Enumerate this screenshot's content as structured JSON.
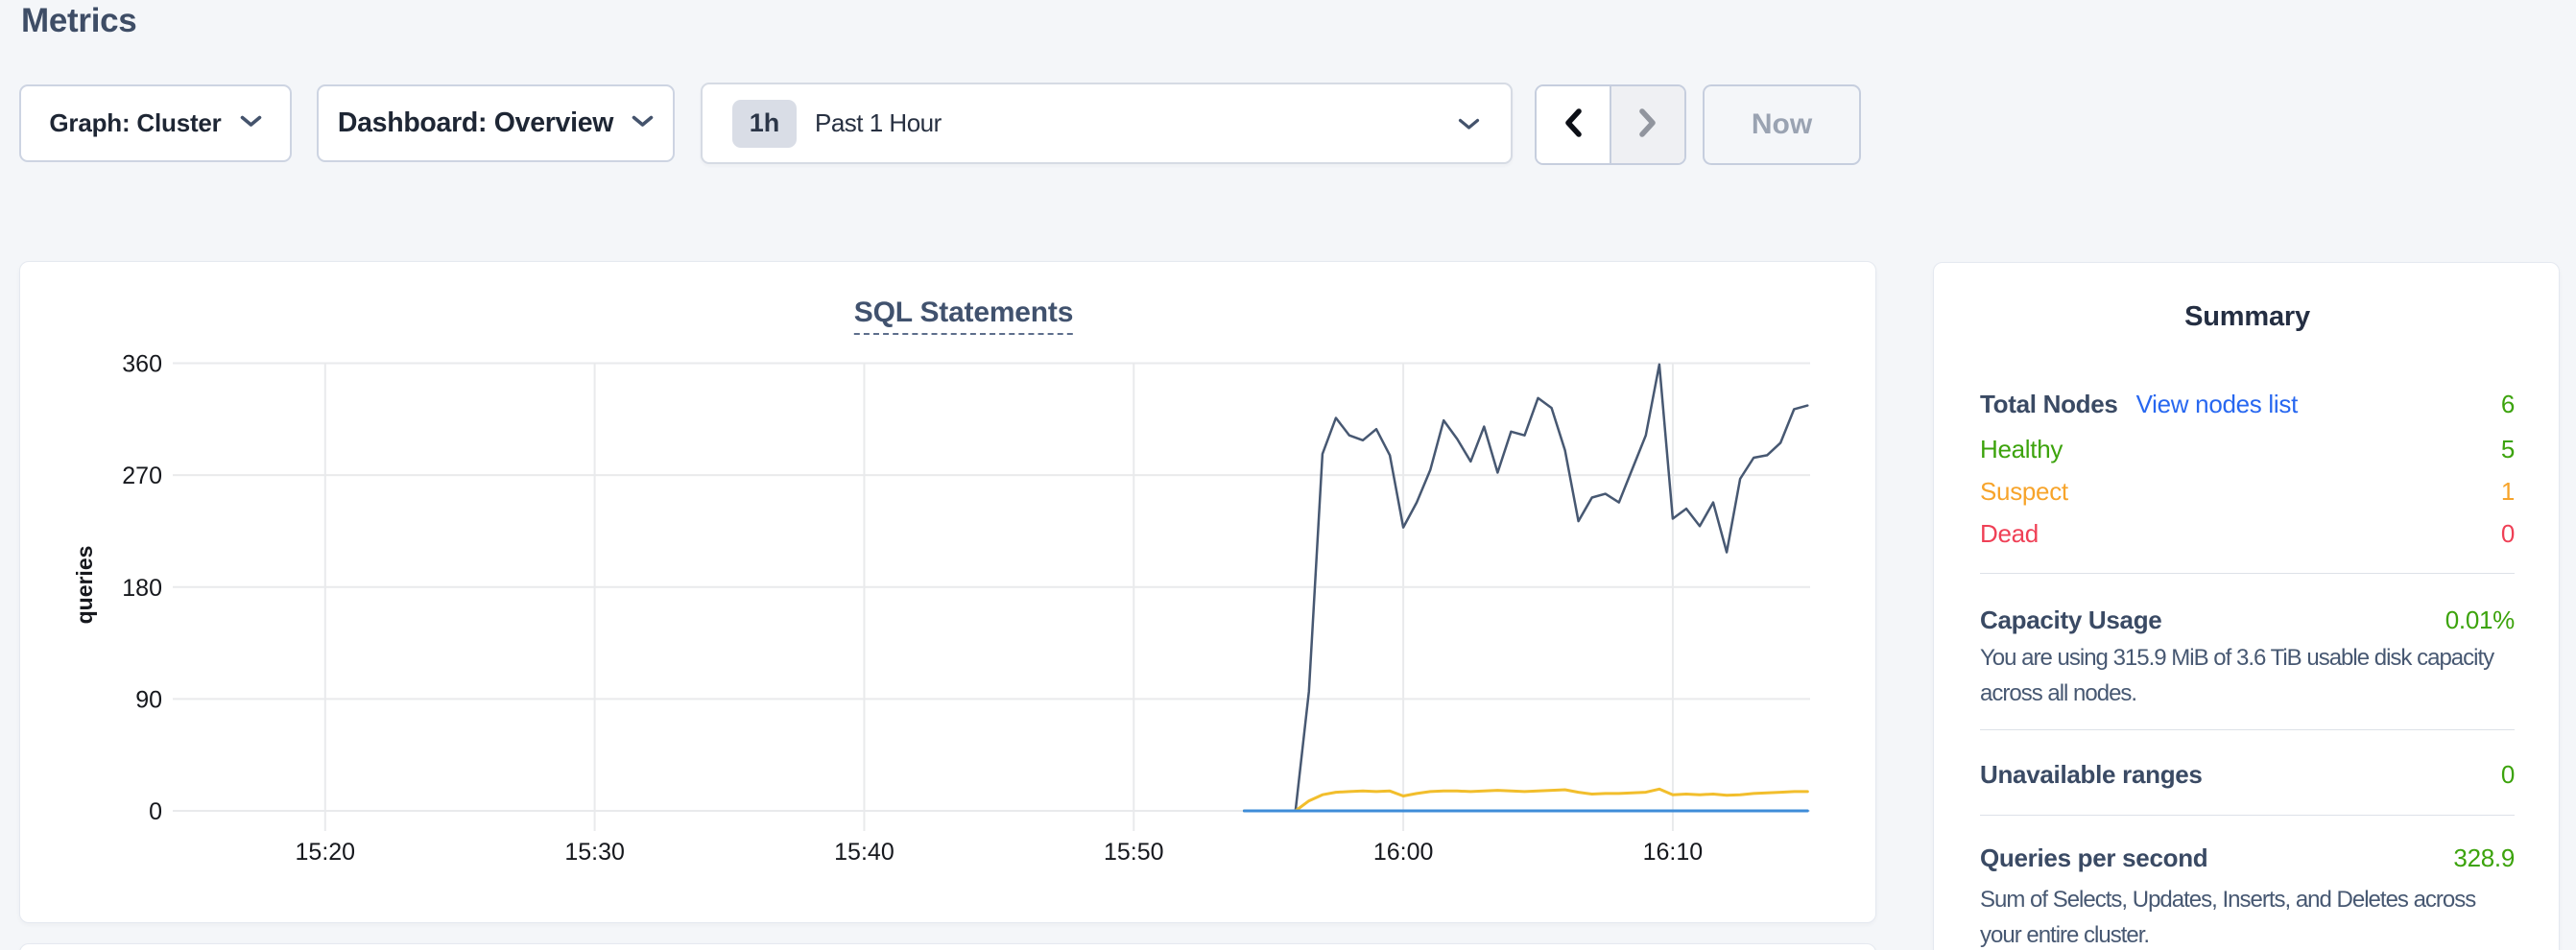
{
  "page": {
    "title": "Metrics"
  },
  "toolbar": {
    "graph_dropdown_label": "Graph: Cluster",
    "dashboard_dropdown_label": "Dashboard: Overview",
    "time_selector": {
      "badge": "1h",
      "label": "Past 1 Hour"
    },
    "now_button_label": "Now"
  },
  "chart_data": {
    "type": "line",
    "title": "SQL Statements",
    "ylabel": "queries",
    "grid": true,
    "legend_position": "none",
    "xlim_minutes_after_1500": [
      14.345,
      75.095
    ],
    "ylim": [
      0,
      360
    ],
    "y_ticks": [
      0,
      90,
      180,
      270,
      360
    ],
    "x_ticks": [
      {
        "t": 20,
        "label": "15:20"
      },
      {
        "t": 30,
        "label": "15:30"
      },
      {
        "t": 40,
        "label": "15:40"
      },
      {
        "t": 50,
        "label": "15:50"
      },
      {
        "t": 60,
        "label": "16:00"
      },
      {
        "t": 70,
        "label": "16:10"
      }
    ],
    "series": [
      {
        "name": "series-navy",
        "color": "#475872",
        "stroke_width": 2.5,
        "points": [
          [
            54.1,
            0
          ],
          [
            54.5,
            0
          ],
          [
            55,
            0
          ],
          [
            55.5,
            0
          ],
          [
            56,
            0
          ],
          [
            56.5,
            96
          ],
          [
            57,
            287
          ],
          [
            57.5,
            316
          ],
          [
            58,
            302
          ],
          [
            58.5,
            298
          ],
          [
            59,
            307
          ],
          [
            59.5,
            286
          ],
          [
            60,
            228
          ],
          [
            60.5,
            248
          ],
          [
            61,
            274
          ],
          [
            61.5,
            314
          ],
          [
            62,
            299
          ],
          [
            62.5,
            281
          ],
          [
            63,
            309
          ],
          [
            63.5,
            272
          ],
          [
            64,
            305
          ],
          [
            64.5,
            302
          ],
          [
            65,
            332
          ],
          [
            65.5,
            324
          ],
          [
            66,
            290
          ],
          [
            66.5,
            233
          ],
          [
            67,
            252
          ],
          [
            67.5,
            255
          ],
          [
            68,
            248
          ],
          [
            68.5,
            275
          ],
          [
            69,
            302
          ],
          [
            69.5,
            359
          ],
          [
            70,
            235
          ],
          [
            70.5,
            243
          ],
          [
            71,
            229
          ],
          [
            71.5,
            248
          ],
          [
            72,
            208
          ],
          [
            72.5,
            267
          ],
          [
            73,
            284
          ],
          [
            73.5,
            286
          ],
          [
            74,
            296
          ],
          [
            74.5,
            323
          ],
          [
            75,
            326
          ]
        ]
      },
      {
        "name": "series-yellow",
        "color": "#f2be2c",
        "stroke_width": 3,
        "points": [
          [
            54.1,
            0
          ],
          [
            54.5,
            0
          ],
          [
            55,
            0
          ],
          [
            55.5,
            0
          ],
          [
            56,
            0
          ],
          [
            56.5,
            8
          ],
          [
            57,
            13
          ],
          [
            57.5,
            15
          ],
          [
            58,
            15.5
          ],
          [
            58.5,
            16
          ],
          [
            59,
            15.5
          ],
          [
            59.5,
            16
          ],
          [
            60,
            12
          ],
          [
            60.5,
            14
          ],
          [
            61,
            15.5
          ],
          [
            61.5,
            16
          ],
          [
            62,
            16
          ],
          [
            62.5,
            15.5
          ],
          [
            63,
            16
          ],
          [
            63.5,
            16.5
          ],
          [
            64,
            16
          ],
          [
            64.5,
            15.5
          ],
          [
            65,
            16
          ],
          [
            65.5,
            16.5
          ],
          [
            66,
            17
          ],
          [
            66.5,
            15
          ],
          [
            67,
            13.5
          ],
          [
            67.5,
            14
          ],
          [
            68,
            14
          ],
          [
            68.5,
            14.5
          ],
          [
            69,
            15
          ],
          [
            69.5,
            17.5
          ],
          [
            70,
            13
          ],
          [
            70.5,
            13.5
          ],
          [
            71,
            13
          ],
          [
            71.5,
            13.5
          ],
          [
            72,
            12.5
          ],
          [
            72.5,
            13
          ],
          [
            73,
            14
          ],
          [
            73.5,
            14.5
          ],
          [
            74,
            15
          ],
          [
            74.5,
            15.5
          ],
          [
            75,
            15.5
          ]
        ]
      },
      {
        "name": "series-blue",
        "color": "#3e8cd8",
        "stroke_width": 3,
        "points": [
          [
            54.1,
            0
          ],
          [
            75,
            0
          ]
        ]
      }
    ]
  },
  "summary": {
    "title": "Summary",
    "total_nodes": {
      "label": "Total Nodes",
      "link": "View nodes list",
      "value": "6"
    },
    "node_rows": [
      {
        "label": "Healthy",
        "value": "5",
        "color": "green"
      },
      {
        "label": "Suspect",
        "value": "1",
        "color": "orange"
      },
      {
        "label": "Dead",
        "value": "0",
        "color": "red"
      }
    ],
    "capacity": {
      "label": "Capacity Usage",
      "value": "0.01%",
      "description": "You are using 315.9 MiB of 3.6 TiB usable disk capacity across all nodes."
    },
    "unavailable": {
      "label": "Unavailable ranges",
      "value": "0"
    },
    "qps": {
      "label": "Queries per second",
      "value": "328.9",
      "description": "Sum of Selects, Updates, Inserts, and Deletes across your entire cluster."
    }
  },
  "colors": {
    "page_bg": "#f4f6f9",
    "healthy_green": "#3ca30c",
    "suspect_orange": "#f7a42b",
    "dead_red": "#ef4056",
    "link_blue": "#2767f0",
    "series_navy": "#475872",
    "series_yellow": "#f2be2c",
    "series_blue": "#3e8cd8"
  }
}
